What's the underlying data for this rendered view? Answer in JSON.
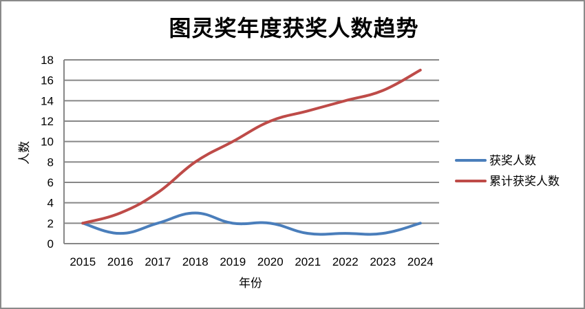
{
  "chart_data": {
    "type": "line",
    "title": "图灵奖年度获奖人数趋势",
    "xlabel": "年份",
    "ylabel": "人数",
    "categories": [
      "2015",
      "2016",
      "2017",
      "2018",
      "2019",
      "2020",
      "2021",
      "2022",
      "2023",
      "2024"
    ],
    "series": [
      {
        "name": "获奖人数",
        "color": "#4a7ebb",
        "values": [
          2,
          1,
          2,
          3,
          2,
          2,
          1,
          1,
          1,
          2
        ]
      },
      {
        "name": "累计获奖人数",
        "color": "#be4b48",
        "values": [
          2,
          3,
          5,
          8,
          10,
          12,
          13,
          14,
          15,
          17
        ]
      }
    ],
    "ylim": [
      0,
      18
    ],
    "yticks": [
      0,
      2,
      4,
      6,
      8,
      10,
      12,
      14,
      16,
      18
    ],
    "grid": true,
    "smooth": true,
    "legend_position": "right"
  }
}
